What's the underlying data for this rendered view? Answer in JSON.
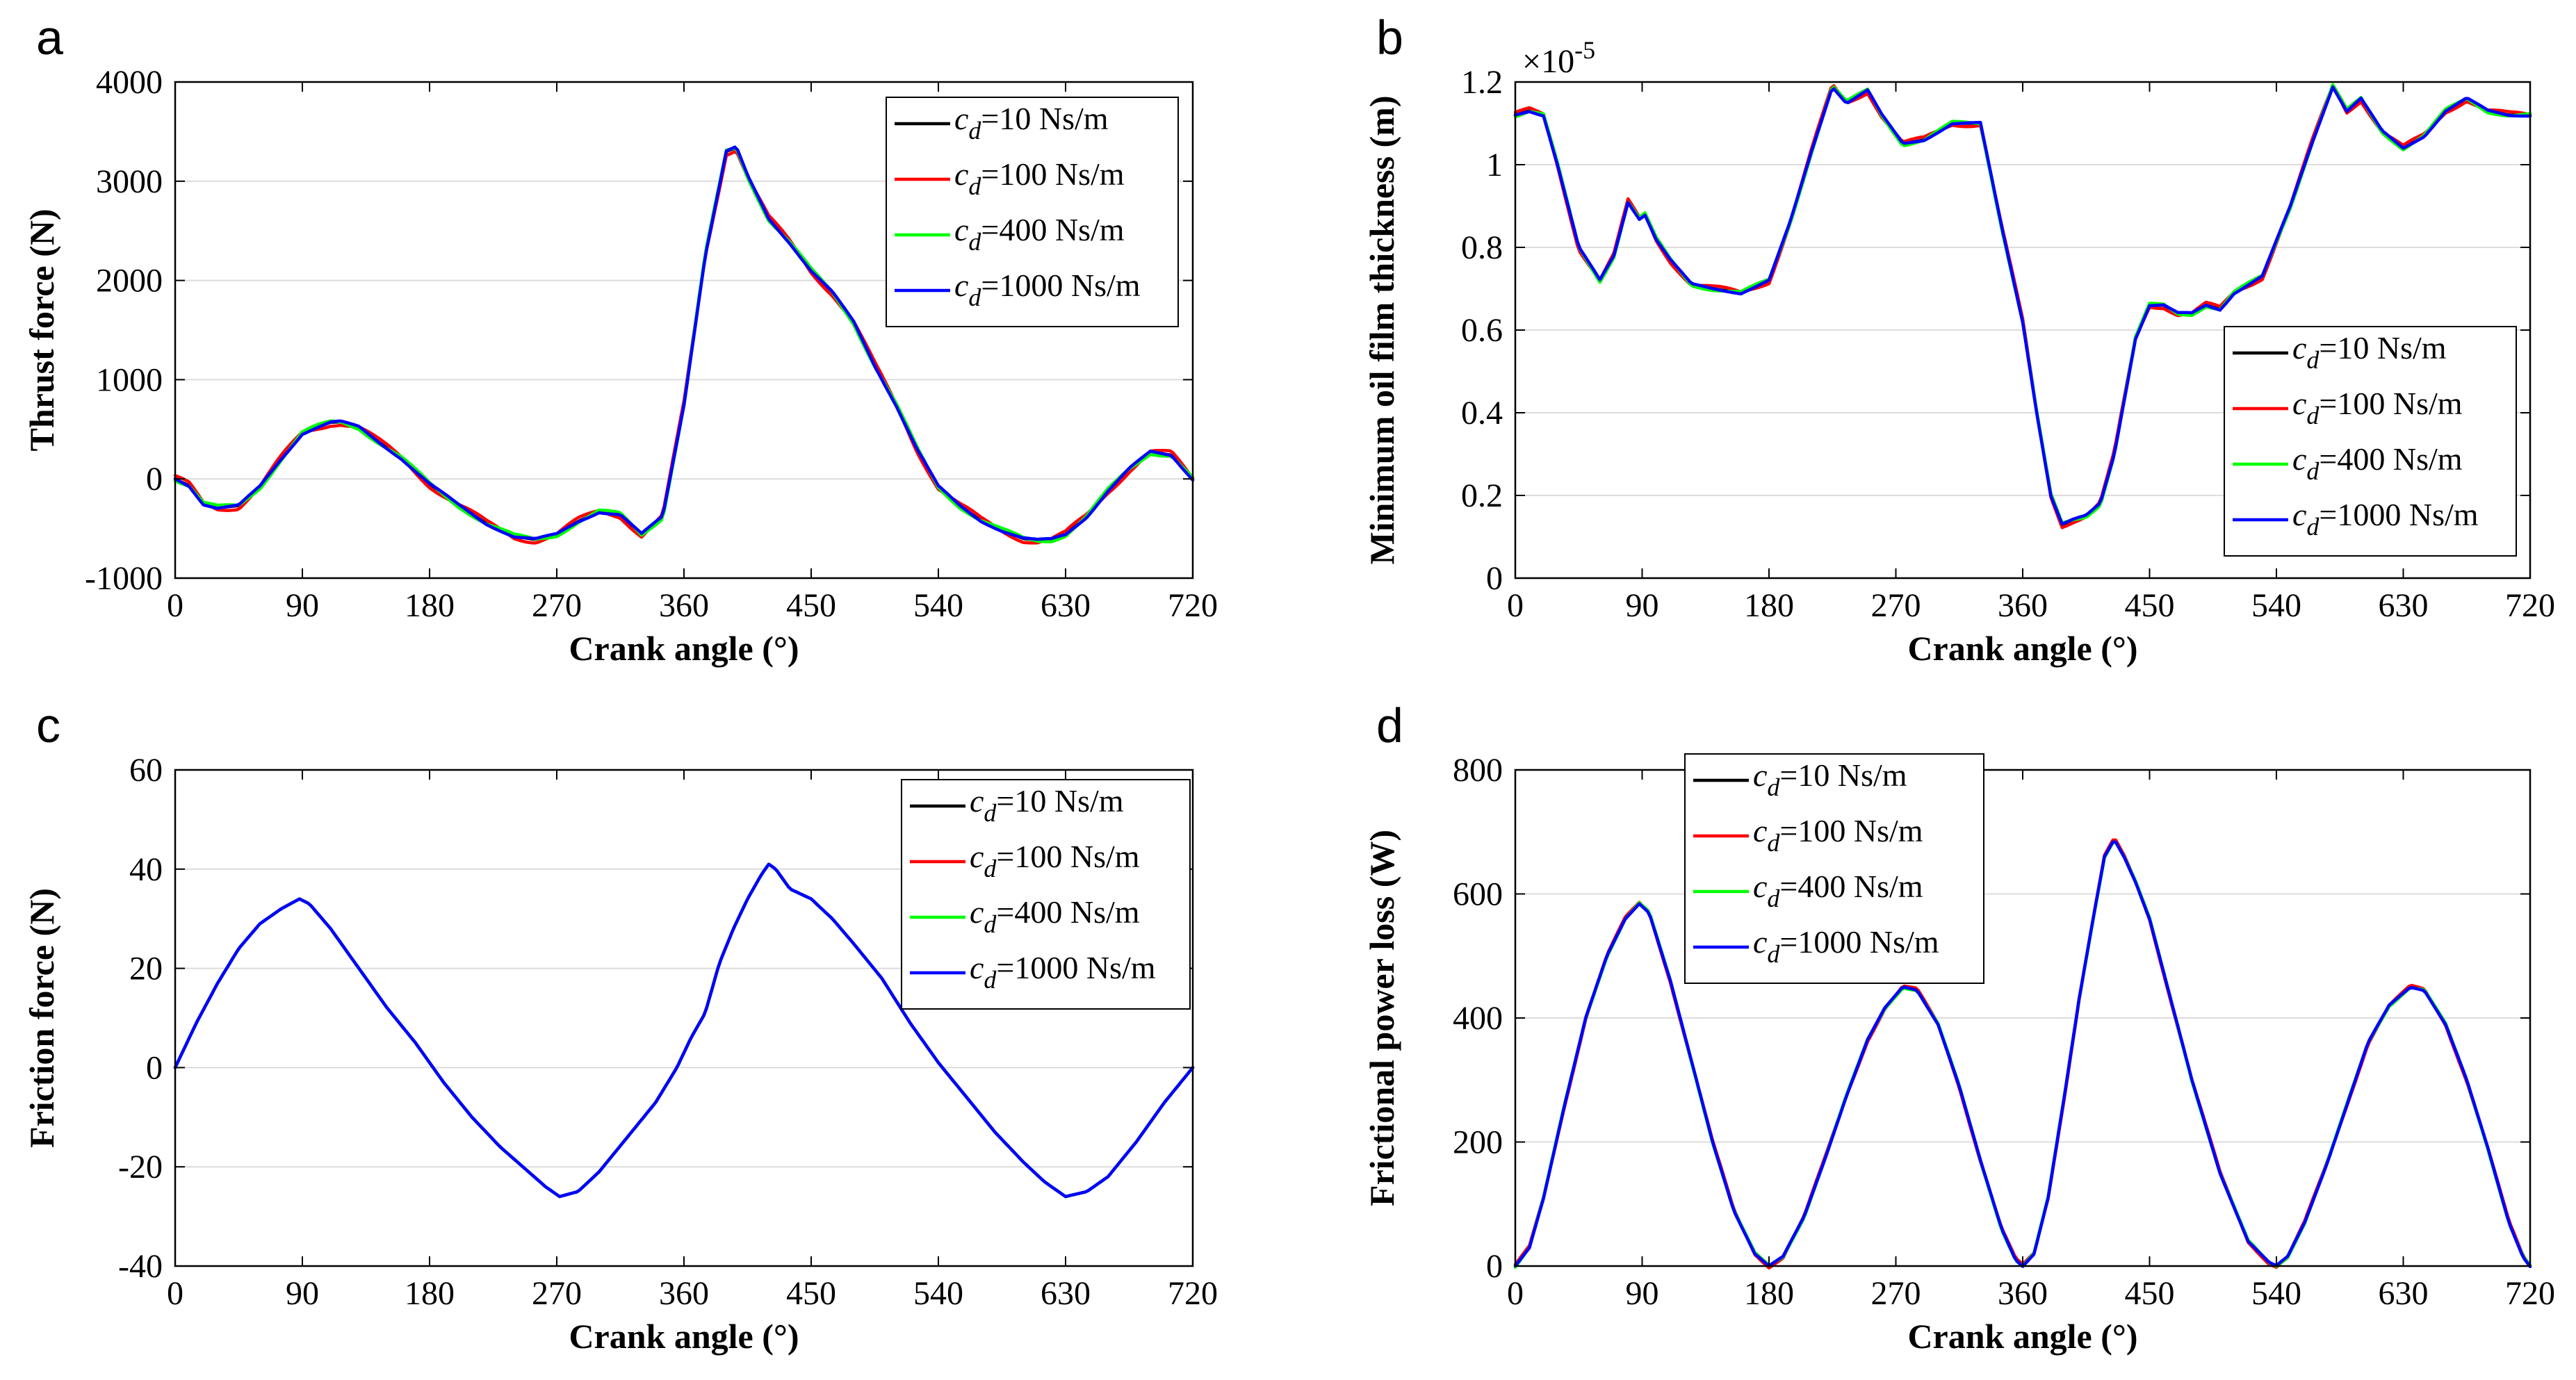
{
  "colors": {
    "s10": "#000000",
    "s100": "#ff0000",
    "s400": "#00ff00",
    "s1000": "#0000ff",
    "grid": "#dcdcdc"
  },
  "legend": {
    "entries": [
      {
        "italic": "c",
        "sub": "d",
        "rest": "=10 Ns/m"
      },
      {
        "italic": "c",
        "sub": "d",
        "rest": "=100 Ns/m"
      },
      {
        "italic": "c",
        "sub": "d",
        "rest": "=400 Ns/m"
      },
      {
        "italic": "c",
        "sub": "d",
        "rest": "=1000 Ns/m"
      }
    ]
  },
  "chart_data": [
    {
      "letter": "a",
      "type": "line",
      "title": "",
      "xlabel": "Crank angle (°)",
      "ylabel": "Thrust force (N)",
      "xlim": [
        0,
        720
      ],
      "ylim": [
        -1000,
        4000
      ],
      "xticks": [
        0,
        90,
        180,
        270,
        360,
        450,
        540,
        630,
        720
      ],
      "yticks": [
        -1000,
        0,
        1000,
        2000,
        3000,
        4000
      ],
      "ytick_labels": [
        "-1000",
        "0",
        "1000",
        "2000",
        "3000",
        "4000"
      ],
      "exponent_label": "",
      "legend_position": "top-right",
      "series_names": [
        "cd=10 Ns/m",
        "cd=100 Ns/m",
        "cd=400 Ns/m",
        "cd=1000 Ns/m"
      ],
      "x": [
        0,
        10,
        20,
        30,
        45,
        60,
        75,
        90,
        100,
        110,
        117,
        130,
        145,
        160,
        180,
        200,
        220,
        240,
        255,
        270,
        285,
        300,
        315,
        330,
        345,
        360,
        375,
        390,
        397,
        405,
        420,
        435,
        450,
        465,
        480,
        495,
        510,
        525,
        540,
        555,
        570,
        585,
        600,
        610,
        620,
        630,
        645,
        660,
        675,
        690,
        705,
        720
      ],
      "values": [
        0,
        -70,
        -250,
        -290,
        -270,
        -80,
        200,
        460,
        520,
        570,
        575,
        520,
        360,
        210,
        -50,
        -260,
        -450,
        -580,
        -610,
        -560,
        -430,
        -330,
        -360,
        -560,
        -380,
        750,
        2250,
        3300,
        3340,
        3050,
        2620,
        2380,
        2100,
        1880,
        1580,
        1140,
        750,
        300,
        -80,
        -270,
        -420,
        -520,
        -600,
        -620,
        -610,
        -560,
        -380,
        -120,
        100,
        270,
        240,
        0
      ],
      "jitter": 40
    },
    {
      "letter": "b",
      "type": "line",
      "title": "",
      "xlabel": "Crank angle (°)",
      "ylabel": "Minimum oil film thickness (m)",
      "xlim": [
        0,
        720
      ],
      "ylim": [
        0,
        1.2
      ],
      "xticks": [
        0,
        90,
        180,
        270,
        360,
        450,
        540,
        630,
        720
      ],
      "yticks": [
        0,
        0.2,
        0.4,
        0.6,
        0.8,
        1,
        1.2
      ],
      "ytick_labels": [
        "0",
        "0.2",
        "0.4",
        "0.6",
        "0.8",
        "1",
        "1.2"
      ],
      "exponent_label": "×10",
      "exponent_power": "-5",
      "legend_position": "bottom-right",
      "series_names": [
        "cd=10 Ns/m",
        "cd=100 Ns/m",
        "cd=400 Ns/m",
        "cd=1000 Ns/m"
      ],
      "x": [
        0,
        10,
        20,
        30,
        45,
        60,
        70,
        80,
        88,
        92,
        100,
        110,
        125,
        140,
        160,
        180,
        195,
        210,
        225,
        235,
        250,
        260,
        275,
        290,
        310,
        330,
        345,
        360,
        370,
        380,
        388,
        395,
        405,
        415,
        425,
        440,
        450,
        460,
        470,
        480,
        490,
        500,
        510,
        530,
        550,
        565,
        580,
        590,
        600,
        615,
        630,
        645,
        660,
        675,
        690,
        705,
        720
      ],
      "values": [
        1.12,
        1.13,
        1.12,
        1.0,
        0.8,
        0.72,
        0.78,
        0.91,
        0.87,
        0.88,
        0.82,
        0.77,
        0.71,
        0.7,
        0.69,
        0.72,
        0.86,
        1.03,
        1.19,
        1.15,
        1.18,
        1.12,
        1.05,
        1.06,
        1.1,
        1.1,
        0.85,
        0.62,
        0.4,
        0.2,
        0.13,
        0.14,
        0.15,
        0.18,
        0.3,
        0.58,
        0.66,
        0.66,
        0.64,
        0.64,
        0.66,
        0.65,
        0.69,
        0.73,
        0.9,
        1.05,
        1.19,
        1.13,
        1.16,
        1.08,
        1.04,
        1.07,
        1.13,
        1.16,
        1.13,
        1.12,
        1.12
      ],
      "jitter": 0.008
    },
    {
      "letter": "c",
      "type": "line",
      "title": "",
      "xlabel": "Crank angle (°)",
      "ylabel": "Friction force (N)",
      "xlim": [
        0,
        720
      ],
      "ylim": [
        -40,
        60
      ],
      "xticks": [
        0,
        90,
        180,
        270,
        360,
        450,
        540,
        630,
        720
      ],
      "yticks": [
        -40,
        -20,
        0,
        20,
        40,
        60
      ],
      "ytick_labels": [
        "-40",
        "-20",
        "0",
        "20",
        "40",
        "60"
      ],
      "exponent_label": "",
      "legend_position": "top-right",
      "series_names": [
        "cd=10 Ns/m",
        "cd=100 Ns/m",
        "cd=400 Ns/m",
        "cd=1000 Ns/m"
      ],
      "x": [
        0,
        15,
        30,
        45,
        60,
        75,
        88,
        95,
        110,
        130,
        150,
        170,
        190,
        210,
        230,
        250,
        262,
        272,
        285,
        300,
        320,
        340,
        355,
        365,
        375,
        385,
        395,
        405,
        415,
        420,
        425,
        435,
        450,
        465,
        480,
        500,
        520,
        540,
        560,
        580,
        600,
        615,
        630,
        645,
        660,
        680,
        700,
        720
      ],
      "values": [
        0,
        9,
        17,
        24,
        29,
        32,
        34,
        33,
        28,
        20,
        12,
        5,
        -3,
        -10,
        -16,
        -21,
        -24,
        -26,
        -25,
        -21,
        -14,
        -7,
        0,
        6,
        11,
        21,
        28,
        34,
        39,
        41,
        40,
        36,
        34,
        30,
        25,
        18,
        9,
        1,
        -6,
        -13,
        -19,
        -23,
        -26,
        -25,
        -22,
        -15,
        -7,
        0
      ],
      "jitter": 0
    },
    {
      "letter": "d",
      "type": "line",
      "title": "",
      "xlabel": "Crank angle (°)",
      "ylabel": "Frictional power loss (W)",
      "xlim": [
        0,
        720
      ],
      "ylim": [
        0,
        800
      ],
      "xticks": [
        0,
        90,
        180,
        270,
        360,
        450,
        540,
        630,
        720
      ],
      "yticks": [
        0,
        200,
        400,
        600,
        800
      ],
      "ytick_labels": [
        "0",
        "200",
        "400",
        "600",
        "800"
      ],
      "exponent_label": "",
      "legend_position": "top-left",
      "series_names": [
        "cd=10 Ns/m",
        "cd=100 Ns/m",
        "cd=400 Ns/m",
        "cd=1000 Ns/m"
      ],
      "x": [
        0,
        10,
        20,
        35,
        50,
        65,
        78,
        88,
        95,
        110,
        125,
        140,
        155,
        170,
        180,
        190,
        205,
        220,
        235,
        250,
        262,
        275,
        285,
        300,
        315,
        330,
        345,
        355,
        360,
        368,
        378,
        390,
        400,
        410,
        418,
        425,
        432,
        440,
        450,
        465,
        480,
        500,
        520,
        535,
        540,
        548,
        560,
        575,
        590,
        605,
        620,
        635,
        645,
        660,
        675,
        690,
        705,
        715,
        720
      ],
      "values": [
        0,
        30,
        110,
        260,
        400,
        500,
        560,
        585,
        570,
        460,
        330,
        200,
        90,
        20,
        0,
        15,
        80,
        175,
        275,
        365,
        415,
        450,
        445,
        390,
        290,
        170,
        60,
        10,
        0,
        20,
        110,
        280,
        430,
        560,
        660,
        688,
        660,
        620,
        560,
        430,
        300,
        150,
        40,
        5,
        0,
        15,
        70,
        160,
        260,
        360,
        420,
        450,
        445,
        390,
        300,
        190,
        70,
        15,
        0
      ],
      "jitter": 3
    }
  ]
}
